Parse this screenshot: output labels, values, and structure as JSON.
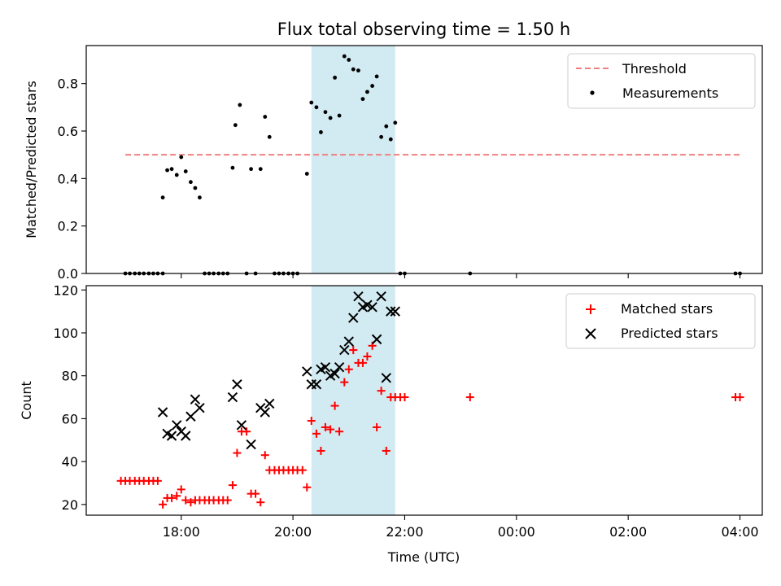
{
  "chart_data": {
    "title": "Flux total observing time = 1.50 h",
    "xlabel": "Time (UTC)",
    "x_axis": {
      "unit": "hours",
      "note": "hours after 00:00 of the first day; >24 means next day",
      "xlim": [
        16.3,
        28.4
      ],
      "ticks": [
        18,
        20,
        22,
        24,
        26,
        28
      ],
      "tick_labels": [
        "18:00",
        "20:00",
        "22:00",
        "00:00",
        "02:00",
        "04:00"
      ]
    },
    "highlight_span": {
      "x": [
        20.33,
        21.83
      ],
      "color": "#add8e6"
    },
    "top": {
      "type": "scatter",
      "ylabel": "Matched/Predicted stars",
      "ylim": [
        0,
        0.96
      ],
      "yticks": [
        0.0,
        0.2,
        0.4,
        0.6,
        0.8
      ],
      "ytick_labels": [
        "0.0",
        "0.2",
        "0.4",
        "0.6",
        "0.8"
      ],
      "legend": {
        "position": "upper right",
        "items": [
          "Threshold",
          "Measurements"
        ]
      },
      "threshold": {
        "name": "Threshold",
        "y": 0.5,
        "x": [
          17.0,
          28.0
        ],
        "color": "#f08080",
        "style": "dashed"
      },
      "measurements": {
        "name": "Measurements",
        "color": "#000000",
        "x": [
          17.0,
          17.08,
          17.17,
          17.25,
          17.33,
          17.42,
          17.5,
          17.58,
          17.67,
          17.67,
          17.75,
          17.83,
          17.92,
          18.0,
          18.08,
          18.17,
          18.25,
          18.33,
          18.42,
          18.5,
          18.58,
          18.67,
          18.75,
          18.83,
          18.92,
          18.97,
          19.05,
          19.17,
          19.25,
          19.33,
          19.42,
          19.5,
          19.58,
          19.67,
          19.75,
          19.83,
          19.92,
          20.0,
          20.08,
          20.25,
          20.33,
          20.42,
          20.5,
          20.58,
          20.67,
          20.75,
          20.83,
          20.92,
          21.0,
          21.08,
          21.17,
          21.25,
          21.33,
          21.42,
          21.5,
          21.58,
          21.67,
          21.75,
          21.83,
          21.92,
          22.0,
          23.17,
          27.92,
          28.0
        ],
        "y": [
          0.0,
          0.0,
          0.0,
          0.0,
          0.0,
          0.0,
          0.0,
          0.0,
          0.0,
          0.32,
          0.435,
          0.44,
          0.415,
          0.49,
          0.43,
          0.385,
          0.36,
          0.32,
          0.0,
          0.0,
          0.0,
          0.0,
          0.0,
          0.0,
          0.445,
          0.625,
          0.71,
          0.0,
          0.44,
          0.0,
          0.44,
          0.66,
          0.575,
          0.0,
          0.0,
          0.0,
          0.0,
          0.0,
          0.0,
          0.42,
          0.72,
          0.7,
          0.595,
          0.68,
          0.655,
          0.825,
          0.665,
          0.915,
          0.9,
          0.86,
          0.855,
          0.735,
          0.765,
          0.79,
          0.83,
          0.575,
          0.62,
          0.565,
          0.635,
          0.0,
          0.0,
          0.0,
          0.0,
          0.0
        ]
      }
    },
    "bottom": {
      "type": "scatter",
      "ylabel": "Count",
      "ylim": [
        15,
        122
      ],
      "yticks": [
        20,
        40,
        60,
        80,
        100,
        120
      ],
      "ytick_labels": [
        "20",
        "40",
        "60",
        "80",
        "100",
        "120"
      ],
      "legend": {
        "position": "upper right",
        "items": [
          "Matched stars",
          "Predicted stars"
        ]
      },
      "matched": {
        "name": "Matched stars",
        "color": "#ff0000",
        "marker": "+",
        "x": [
          16.92,
          17.0,
          17.08,
          17.17,
          17.25,
          17.33,
          17.42,
          17.5,
          17.58,
          17.67,
          17.75,
          17.83,
          17.92,
          18.0,
          18.08,
          18.17,
          18.25,
          18.33,
          18.42,
          18.5,
          18.58,
          18.67,
          18.75,
          18.83,
          18.92,
          19.0,
          19.08,
          19.17,
          19.25,
          19.33,
          19.42,
          19.5,
          19.58,
          19.67,
          19.75,
          19.83,
          19.92,
          20.0,
          20.08,
          20.17,
          20.25,
          20.33,
          20.42,
          20.5,
          20.58,
          20.67,
          20.75,
          20.83,
          20.92,
          21.0,
          21.08,
          21.17,
          21.25,
          21.33,
          21.42,
          21.5,
          21.58,
          21.67,
          21.75,
          21.83,
          21.92,
          22.0,
          23.17,
          27.92,
          28.0
        ],
        "y": [
          31,
          31,
          31,
          31,
          31,
          31,
          31,
          31,
          31,
          20,
          23,
          23,
          24,
          27,
          22,
          21,
          22,
          22,
          22,
          22,
          22,
          22,
          22,
          22,
          29,
          44,
          54,
          54,
          25,
          25,
          21,
          43,
          36,
          36,
          36,
          36,
          36,
          36,
          36,
          36,
          28,
          59,
          53,
          45,
          56,
          55,
          66,
          54,
          77,
          83,
          92,
          86,
          86,
          89,
          94,
          56,
          73,
          45,
          70,
          70,
          70,
          70,
          70,
          70,
          70
        ]
      },
      "predicted": {
        "name": "Predicted stars",
        "color": "#000000",
        "marker": "x",
        "x": [
          17.67,
          17.75,
          17.83,
          17.92,
          18.0,
          18.08,
          18.17,
          18.25,
          18.33,
          18.92,
          19.0,
          19.08,
          19.25,
          19.42,
          19.5,
          19.58,
          20.25,
          20.33,
          20.42,
          20.5,
          20.58,
          20.67,
          20.75,
          20.83,
          20.92,
          21.0,
          21.08,
          21.17,
          21.25,
          21.33,
          21.42,
          21.5,
          21.58,
          21.67,
          21.75,
          21.83
        ],
        "y": [
          63,
          53,
          52,
          57,
          54,
          52,
          61,
          69,
          65,
          70,
          76,
          57,
          48,
          65,
          63,
          67,
          82,
          76,
          76,
          83,
          84,
          80,
          81,
          84,
          92,
          96,
          107,
          117,
          112,
          113,
          112,
          97,
          117,
          79,
          110,
          110
        ]
      }
    }
  }
}
